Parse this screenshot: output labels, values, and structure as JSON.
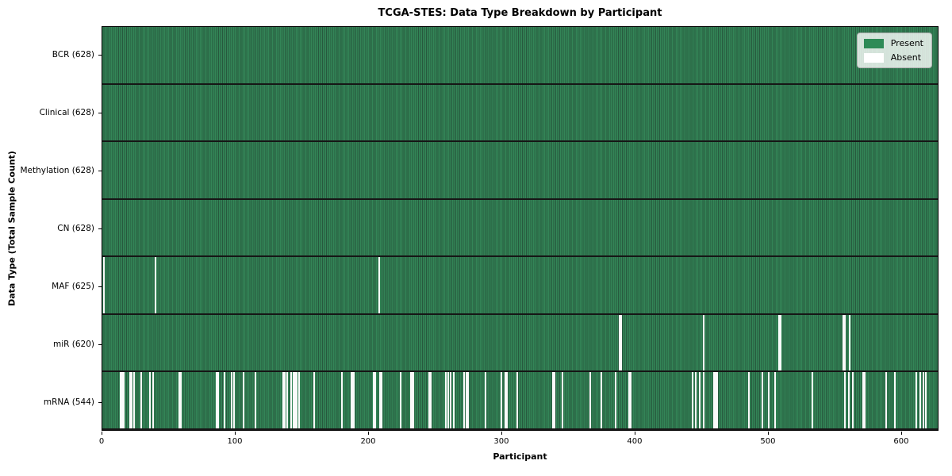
{
  "title": "TCGA-STES: Data Type Breakdown by Participant",
  "xlabel": "Participant",
  "ylabel": "Data Type (Total Sample Count)",
  "colors": {
    "present": "#2e8b57",
    "present_dark_edge": "#27593e",
    "absent": "#fafafa",
    "row_separator": "#161616",
    "legend_border": "#b0b0b0"
  },
  "legend": {
    "entries": [
      {
        "label": "Present",
        "color": "#2e8b57"
      },
      {
        "label": "Absent",
        "color": "#ffffff"
      }
    ]
  },
  "chart_data": {
    "type": "heatmap",
    "title": "TCGA-STES: Data Type Breakdown by Participant",
    "xlabel": "Participant",
    "ylabel": "Data Type (Total Sample Count)",
    "x_range": [
      0,
      628
    ],
    "x_ticks": [
      0,
      100,
      200,
      300,
      400,
      500,
      600
    ],
    "n_participants": 628,
    "legend_position": "upper right",
    "grid": false,
    "rows": [
      {
        "name": "BCR",
        "label": "BCR (628)",
        "present_count": 628,
        "absent_count": 0,
        "absent": []
      },
      {
        "name": "Clinical",
        "label": "Clinical (628)",
        "present_count": 628,
        "absent_count": 0,
        "absent": []
      },
      {
        "name": "Methylation",
        "label": "Methylation (628)",
        "present_count": 628,
        "absent_count": 0,
        "absent": []
      },
      {
        "name": "CN",
        "label": "CN (628)",
        "present_count": 628,
        "absent_count": 0,
        "absent": []
      },
      {
        "name": "MAF",
        "label": "MAF (625)",
        "present_count": 625,
        "absent_count": 3,
        "absent": [
          1,
          40,
          208
        ]
      },
      {
        "name": "miR",
        "label": "miR (620)",
        "present_count": 620,
        "absent_count": 8,
        "absent": [
          389,
          390,
          452,
          509,
          510,
          557,
          558,
          562
        ]
      },
      {
        "name": "mRNA",
        "label": "mRNA (544)",
        "present_count": 544,
        "absent_count": 84,
        "absent": [
          14,
          15,
          16,
          21,
          22,
          24,
          29,
          36,
          38,
          58,
          59,
          86,
          87,
          92,
          97,
          99,
          106,
          115,
          136,
          137,
          139,
          142,
          144,
          145,
          146,
          148,
          159,
          180,
          187,
          188,
          189,
          204,
          205,
          209,
          210,
          224,
          232,
          233,
          234,
          246,
          247,
          258,
          260,
          262,
          264,
          272,
          274,
          275,
          288,
          300,
          303,
          304,
          312,
          339,
          340,
          346,
          367,
          375,
          386,
          396,
          397,
          444,
          446,
          449,
          452,
          460,
          461,
          462,
          486,
          496,
          501,
          506,
          534,
          558,
          561,
          564,
          572,
          573,
          589,
          596,
          612,
          615,
          617,
          619
        ]
      }
    ]
  }
}
